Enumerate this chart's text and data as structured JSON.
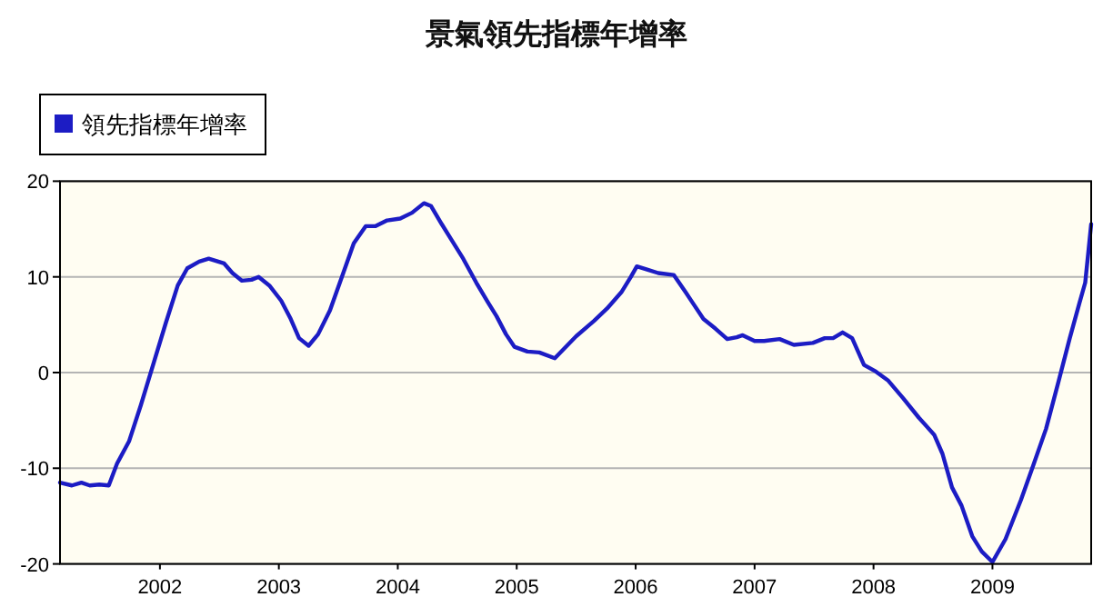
{
  "chart_data": {
    "type": "line",
    "title": "景氣領先指標年增率",
    "x": [
      2001.16,
      2001.26,
      2001.34,
      2001.41,
      2001.49,
      2001.57,
      2001.64,
      2001.74,
      2001.84,
      2001.95,
      2002.05,
      2002.15,
      2002.23,
      2002.33,
      2002.41,
      2002.54,
      2002.61,
      2002.69,
      2002.77,
      2002.83,
      2002.92,
      2003.02,
      2003.1,
      2003.17,
      2003.25,
      2003.33,
      2003.43,
      2003.53,
      2003.63,
      2003.73,
      2003.81,
      2003.91,
      2004.02,
      2004.12,
      2004.22,
      2004.28,
      2004.37,
      2004.45,
      2004.55,
      2004.66,
      2004.76,
      2004.83,
      2004.91,
      2004.98,
      2005.09,
      2005.19,
      2005.32,
      2005.5,
      2005.65,
      2005.76,
      2005.88,
      2005.96,
      2006.01,
      2006.09,
      2006.19,
      2006.32,
      2006.42,
      2006.57,
      2006.67,
      2006.77,
      2006.85,
      2006.9,
      2007.0,
      2007.08,
      2007.21,
      2007.33,
      2007.49,
      2007.59,
      2007.66,
      2007.74,
      2007.82,
      2007.92,
      2008.02,
      2008.12,
      2008.25,
      2008.38,
      2008.51,
      2008.58,
      2008.66,
      2008.74,
      2008.83,
      2008.91,
      2009.0,
      2009.11,
      2009.24,
      2009.34,
      2009.45,
      2009.55,
      2009.65,
      2009.73,
      2009.78,
      2009.83
    ],
    "series": [
      {
        "name": "領先指標年增率",
        "color": "#1c1cc4",
        "values": [
          -11.5,
          -11.8,
          -11.5,
          -11.8,
          -11.7,
          -11.8,
          -9.5,
          -7.2,
          -3.4,
          1.1,
          5.2,
          9.1,
          10.9,
          11.6,
          11.9,
          11.4,
          10.4,
          9.6,
          9.7,
          10.0,
          9.1,
          7.5,
          5.6,
          3.6,
          2.8,
          4.0,
          6.5,
          10.0,
          13.5,
          15.3,
          15.3,
          15.9,
          16.1,
          16.7,
          17.7,
          17.4,
          15.5,
          13.9,
          11.9,
          9.4,
          7.3,
          5.9,
          4.0,
          2.7,
          2.2,
          2.1,
          1.5,
          3.8,
          5.4,
          6.7,
          8.4,
          10.0,
          11.1,
          10.8,
          10.4,
          10.2,
          8.4,
          5.6,
          4.6,
          3.5,
          3.7,
          3.9,
          3.3,
          3.3,
          3.5,
          2.9,
          3.1,
          3.6,
          3.6,
          4.2,
          3.6,
          0.8,
          0.1,
          -0.8,
          -2.7,
          -4.7,
          -6.5,
          -8.5,
          -12.0,
          -13.9,
          -17.1,
          -18.7,
          -19.8,
          -17.4,
          -13.3,
          -9.8,
          -5.9,
          -1.2,
          3.6,
          7.2,
          9.4,
          15.5
        ]
      }
    ],
    "xlim": [
      2001.16,
      2009.83
    ],
    "xticks": [
      2002,
      2003,
      2004,
      2005,
      2006,
      2007,
      2008,
      2009
    ],
    "ylim": [
      -20,
      20
    ],
    "yticks": [
      -20,
      -10,
      0,
      10,
      20
    ],
    "grid": "y",
    "legend": "top left"
  }
}
